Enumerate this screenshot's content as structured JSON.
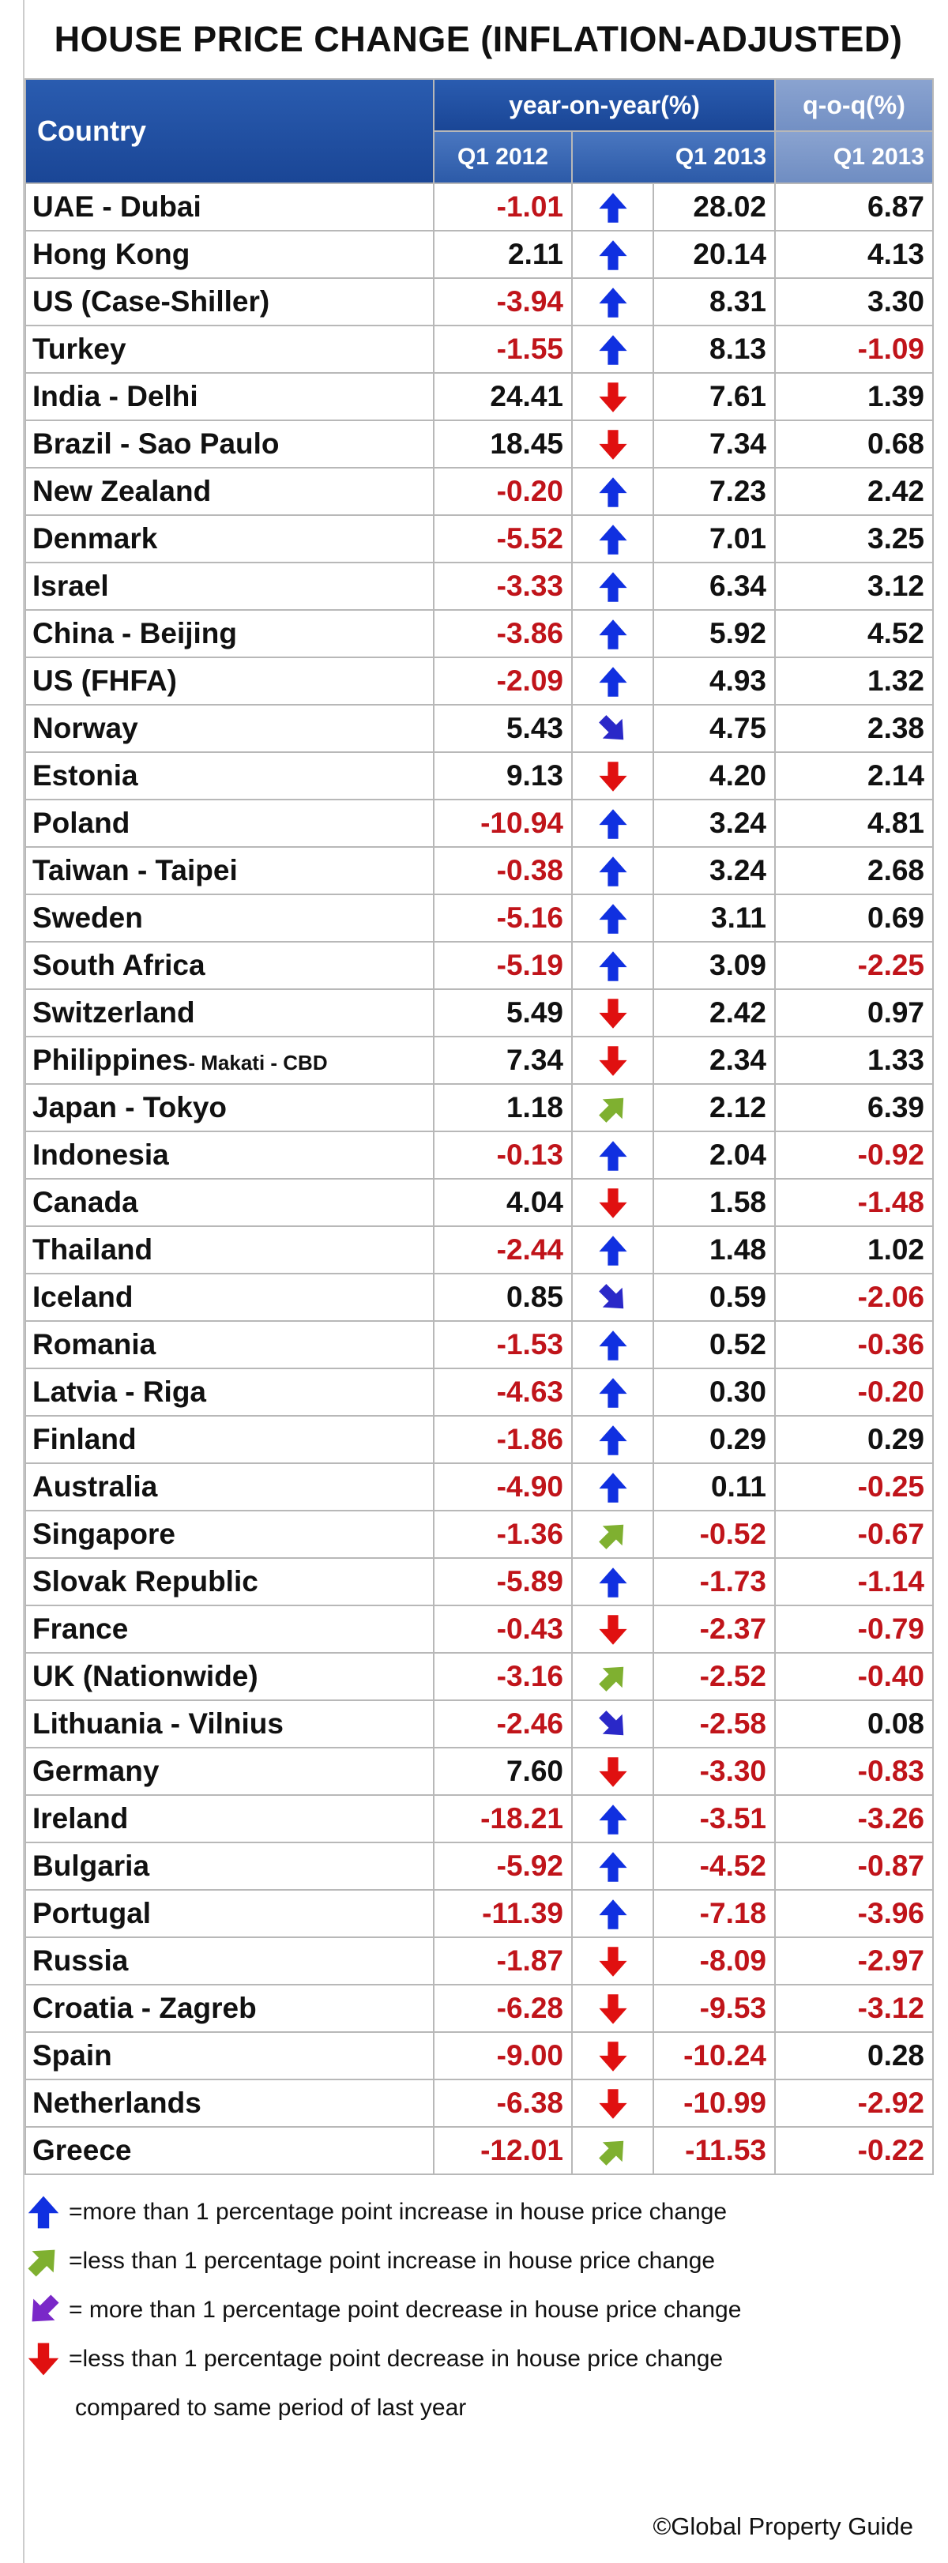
{
  "title": "HOUSE PRICE CHANGE (INFLATION-ADJUSTED)",
  "header": {
    "country": "Country",
    "yoy": "year-on-year(%)",
    "qoq": "q-o-q(%)",
    "yoy_a": "Q1 2012",
    "yoy_b": "Q1 2013",
    "qoq_a": "Q1 2013"
  },
  "rows": [
    [
      "UAE - Dubai",
      "-1.01",
      "28.02",
      "6.87"
    ],
    [
      "Hong Kong",
      "2.11",
      "20.14",
      "4.13"
    ],
    [
      "US (Case-Shiller)",
      "-3.94",
      "8.31",
      "3.30"
    ],
    [
      "Turkey",
      "-1.55",
      "8.13",
      "-1.09"
    ],
    [
      "India - Delhi",
      "24.41",
      "7.61",
      "1.39"
    ],
    [
      "Brazil - Sao Paulo",
      "18.45",
      "7.34",
      "0.68"
    ],
    [
      "New Zealand",
      "-0.20",
      "7.23",
      "2.42"
    ],
    [
      "Denmark",
      "-5.52",
      "7.01",
      "3.25"
    ],
    [
      "Israel",
      "-3.33",
      "6.34",
      "3.12"
    ],
    [
      "China - Beijing",
      "-3.86",
      "5.92",
      "4.52"
    ],
    [
      "US (FHFA)",
      "-2.09",
      "4.93",
      "1.32"
    ],
    [
      "Norway",
      "5.43",
      "4.75",
      "2.38"
    ],
    [
      "Estonia",
      "9.13",
      "4.20",
      "2.14"
    ],
    [
      "Poland",
      "-10.94",
      "3.24",
      "4.81"
    ],
    [
      "Taiwan - Taipei",
      "-0.38",
      "3.24",
      "2.68"
    ],
    [
      "Sweden",
      "-5.16",
      "3.11",
      "0.69"
    ],
    [
      "South Africa",
      "-5.19",
      "3.09",
      "-2.25"
    ],
    [
      "Switzerland",
      "5.49",
      "2.42",
      "0.97"
    ],
    [
      [
        "Philippines",
        "- Makati - CBD"
      ],
      "7.34",
      "2.34",
      "1.33"
    ],
    [
      "Japan - Tokyo",
      "1.18",
      "2.12",
      "6.39"
    ],
    [
      "Indonesia",
      "-0.13",
      "2.04",
      "-0.92"
    ],
    [
      "Canada",
      "4.04",
      "1.58",
      "-1.48"
    ],
    [
      "Thailand",
      "-2.44",
      "1.48",
      "1.02"
    ],
    [
      "Iceland",
      "0.85",
      "0.59",
      "-2.06"
    ],
    [
      "Romania",
      "-1.53",
      "0.52",
      "-0.36"
    ],
    [
      "Latvia - Riga",
      "-4.63",
      "0.30",
      "-0.20"
    ],
    [
      "Finland",
      "-1.86",
      "0.29",
      "0.29"
    ],
    [
      "Australia",
      "-4.90",
      "0.11",
      "-0.25"
    ],
    [
      "Singapore",
      "-1.36",
      "-0.52",
      "-0.67"
    ],
    [
      "Slovak Republic",
      "-5.89",
      "-1.73",
      "-1.14"
    ],
    [
      "France",
      "-0.43",
      "-2.37",
      "-0.79"
    ],
    [
      "UK (Nationwide)",
      "-3.16",
      "-2.52",
      "-0.40"
    ],
    [
      "Lithuania - Vilnius",
      "-2.46",
      "-2.58",
      "0.08"
    ],
    [
      "Germany",
      "7.60",
      "-3.30",
      "-0.83"
    ],
    [
      "Ireland",
      "-18.21",
      "-3.51",
      "-3.26"
    ],
    [
      "Bulgaria",
      "-5.92",
      "-4.52",
      "-0.87"
    ],
    [
      "Portugal",
      "-11.39",
      "-7.18",
      "-3.96"
    ],
    [
      "Russia",
      "-1.87",
      "-8.09",
      "-2.97"
    ],
    [
      "Croatia - Zagreb",
      "-6.28",
      "-9.53",
      "-3.12"
    ],
    [
      "Spain",
      "-9.00",
      "-10.24",
      "0.28"
    ],
    [
      "Netherlands",
      "-6.38",
      "-10.99",
      "-2.92"
    ],
    [
      "Greece",
      "-12.01",
      "-11.53",
      "-0.22"
    ]
  ],
  "legend": [
    "=more than 1 percentage point increase in house price change",
    "=less than 1 percentage point increase in house price change",
    "= more than 1 percentage point decrease in house price change",
    "=less than 1 percentage point decrease in house price change"
  ],
  "legend_note": "compared to same period of last year",
  "footer": "©Global Property Guide"
}
